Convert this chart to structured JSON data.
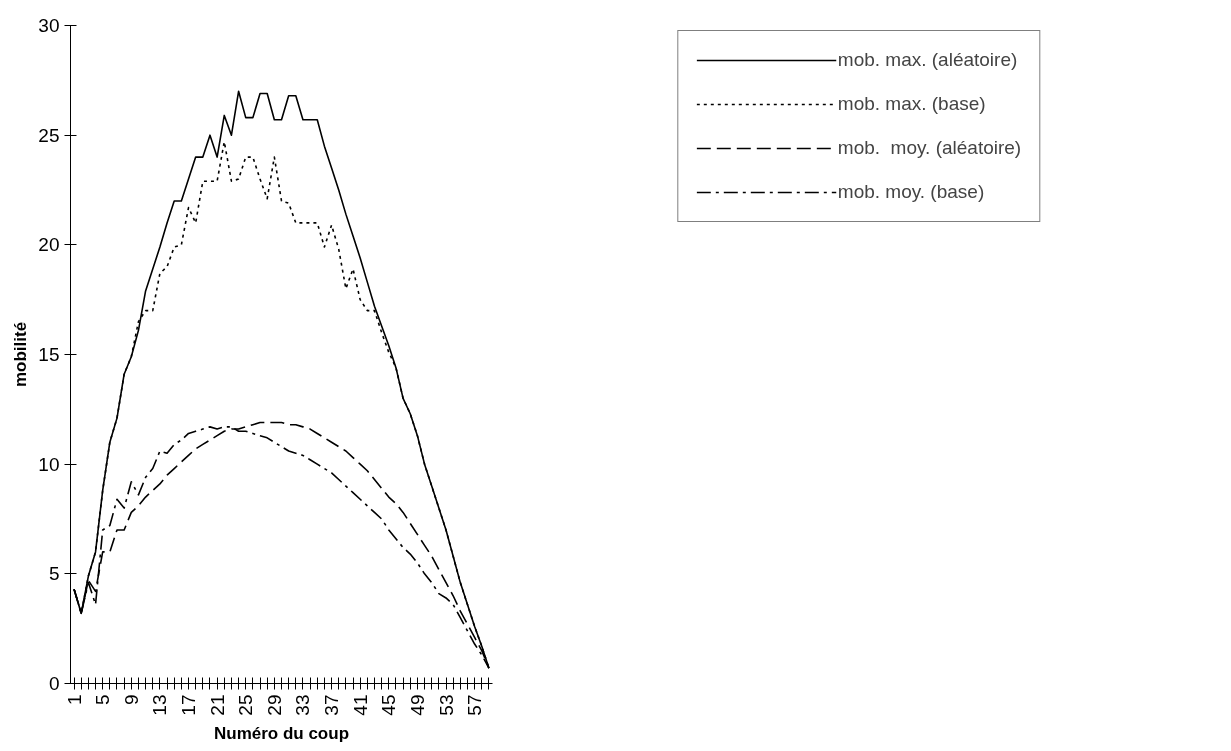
{
  "chart_data": {
    "type": "line",
    "xlabel": "Numéro du coup",
    "ylabel": "mobilité",
    "categories": [
      "1",
      null,
      null,
      null,
      "5",
      null,
      null,
      null,
      "9",
      null,
      null,
      null,
      "13",
      null,
      null,
      null,
      "17",
      null,
      null,
      null,
      "21",
      null,
      null,
      null,
      "25",
      null,
      null,
      null,
      "29",
      null,
      null,
      null,
      "33",
      null,
      null,
      null,
      "37",
      null,
      null,
      null,
      "41",
      null,
      null,
      null,
      "45",
      null,
      null,
      null,
      "49",
      null,
      null,
      null,
      "53",
      null,
      null,
      null,
      "57",
      null,
      null
    ],
    "ylim": [
      0,
      30
    ],
    "yticks": [
      0,
      5,
      10,
      15,
      20,
      25,
      30
    ],
    "grid": false,
    "legend": "top right",
    "marker": "none",
    "series": [
      {
        "name": "mob. max. (aléatoire)",
        "color": "#000000",
        "line_style": "solid",
        "values": [
          4.3,
          3.2,
          4.9,
          6.0,
          8.8,
          11.0,
          12.1,
          14.1,
          14.9,
          16.1,
          17.9,
          18.9,
          19.9,
          21.0,
          22.0,
          22.0,
          23.0,
          24.0,
          24.0,
          25.0,
          24.0,
          25.9,
          25.0,
          27.0,
          25.8,
          25.8,
          26.9,
          26.9,
          25.7,
          25.7,
          26.8,
          26.8,
          25.7,
          25.7,
          25.7,
          24.5,
          23.5,
          22.5,
          21.4,
          20.4,
          19.4,
          18.3,
          17.2,
          16.3,
          15.4,
          14.4,
          13.0,
          12.3,
          11.3,
          10.0,
          9.0,
          8.0,
          7.0,
          5.8,
          4.6,
          3.6,
          2.6,
          1.7,
          0.7
        ]
      },
      {
        "name": "mob. max. (base)",
        "color": "#000000",
        "line_style": "dotted",
        "values": [
          4.3,
          3.2,
          4.9,
          6.0,
          8.8,
          11.0,
          12.1,
          14.1,
          14.9,
          16.5,
          17.0,
          17.0,
          18.7,
          19.0,
          19.9,
          20.0,
          21.7,
          21.0,
          22.9,
          22.9,
          22.9,
          24.7,
          22.9,
          23.0,
          24.0,
          24.0,
          23.0,
          22.1,
          24.0,
          22.0,
          21.9,
          21.0,
          21.0,
          21.0,
          21.0,
          19.9,
          20.9,
          19.8,
          18.0,
          18.9,
          17.5,
          17.0,
          17.0,
          16.0,
          15.1,
          14.4,
          13.0,
          12.3,
          11.3,
          10.0,
          9.0,
          8.0,
          7.0,
          5.8,
          4.6,
          3.6,
          2.6,
          1.7,
          0.7
        ]
      },
      {
        "name": "mob.  moy. (aléatoire)",
        "color": "#000000",
        "line_style": "dashed",
        "values": [
          4.3,
          3.2,
          4.7,
          4.2,
          6.0,
          6.0,
          7.0,
          7.0,
          7.8,
          8.1,
          8.5,
          8.8,
          9.1,
          9.5,
          9.8,
          10.1,
          10.4,
          10.7,
          10.9,
          11.1,
          11.3,
          11.5,
          11.6,
          11.6,
          11.7,
          11.8,
          11.9,
          11.9,
          11.9,
          11.9,
          11.8,
          11.8,
          11.7,
          11.6,
          11.4,
          11.2,
          11.0,
          10.8,
          10.6,
          10.3,
          10.0,
          9.7,
          9.3,
          8.9,
          8.5,
          8.2,
          7.8,
          7.3,
          6.8,
          6.3,
          5.8,
          5.2,
          4.6,
          4.0,
          3.3,
          2.7,
          2.1,
          1.5,
          0.7
        ]
      },
      {
        "name": "mob. moy. (base)",
        "color": "#000000",
        "line_style": "dashdot",
        "values": [
          4.3,
          3.2,
          4.6,
          3.6,
          7.0,
          7.2,
          8.4,
          8.0,
          9.2,
          8.6,
          9.4,
          9.8,
          10.6,
          10.5,
          10.9,
          11.1,
          11.4,
          11.5,
          11.6,
          11.7,
          11.6,
          11.7,
          11.7,
          11.5,
          11.5,
          11.4,
          11.3,
          11.2,
          11.0,
          10.8,
          10.6,
          10.5,
          10.4,
          10.2,
          10.0,
          9.8,
          9.6,
          9.3,
          9.0,
          8.7,
          8.4,
          8.1,
          7.8,
          7.5,
          7.0,
          6.6,
          6.2,
          5.9,
          5.5,
          5.0,
          4.6,
          4.1,
          3.9,
          3.6,
          3.0,
          2.4,
          1.8,
          1.3,
          0.7
        ]
      }
    ]
  }
}
